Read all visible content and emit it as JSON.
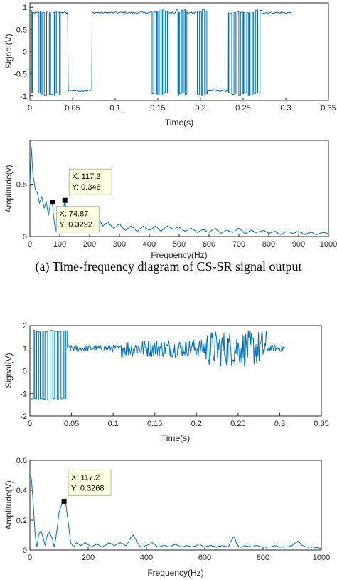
{
  "captions": {
    "a": "(a) Time-frequency diagram of CS-SR signal output"
  },
  "colors": {
    "line": "#0072BD",
    "axis": "#262626"
  },
  "chart_data": [
    {
      "id": "a_time",
      "type": "line",
      "xlabel": "Time(s)",
      "ylabel": "Signal(V)",
      "xlim": [
        0,
        0.35
      ],
      "ylim": [
        -1.1,
        1.1
      ],
      "xticks": [
        "0",
        "0.05",
        "0.1",
        "0.15",
        "0.2",
        "0.25",
        "0.3",
        "0.35"
      ],
      "yticks": [
        "-1",
        "-0.5",
        "0",
        "0.5",
        "1"
      ],
      "series": [
        {
          "segments": [
            {
              "from": 0.0,
              "to": 0.003,
              "pattern": "switch",
              "lo": -1.0,
              "hi": 0.95
            },
            {
              "from": 0.003,
              "to": 0.008,
              "pattern": "flat",
              "level": 0.88
            },
            {
              "from": 0.008,
              "to": 0.038,
              "pattern": "switch",
              "lo": -1.0,
              "hi": 0.95
            },
            {
              "from": 0.038,
              "to": 0.045,
              "pattern": "flat",
              "level": 0.88
            },
            {
              "from": 0.045,
              "to": 0.073,
              "pattern": "flat",
              "level": -0.88
            },
            {
              "from": 0.073,
              "to": 0.141,
              "pattern": "flat",
              "level": 0.88
            },
            {
              "from": 0.141,
              "to": 0.162,
              "pattern": "switch",
              "lo": -1.0,
              "hi": 0.95
            },
            {
              "from": 0.162,
              "to": 0.172,
              "pattern": "flat",
              "level": 0.88
            },
            {
              "from": 0.172,
              "to": 0.184,
              "pattern": "switch",
              "lo": -1.0,
              "hi": 0.95
            },
            {
              "from": 0.184,
              "to": 0.195,
              "pattern": "flat",
              "level": 0.88
            },
            {
              "from": 0.195,
              "to": 0.208,
              "pattern": "switch",
              "lo": -1.0,
              "hi": 0.95
            },
            {
              "from": 0.208,
              "to": 0.232,
              "pattern": "flat",
              "level": -0.88
            },
            {
              "from": 0.232,
              "to": 0.272,
              "pattern": "switch",
              "lo": -1.0,
              "hi": 0.95
            },
            {
              "from": 0.272,
              "to": 0.306,
              "pattern": "flat",
              "level": 0.88
            }
          ]
        }
      ]
    },
    {
      "id": "a_freq",
      "type": "line",
      "xlabel": "Frequency(Hz)",
      "ylabel": "Amplitude(v)",
      "xlim": [
        0,
        1000
      ],
      "ylim": [
        0,
        0.92
      ],
      "xticks": [
        "0",
        "100",
        "200",
        "300",
        "400",
        "500",
        "600",
        "700",
        "800",
        "900",
        "1000"
      ],
      "yticks": [
        "0",
        "0.5"
      ],
      "series": [
        {
          "points": [
            [
              0,
              0.5
            ],
            [
              5,
              0.85
            ],
            [
              10,
              0.6
            ],
            [
              18,
              0.45
            ],
            [
              25,
              0.42
            ],
            [
              32,
              0.32
            ],
            [
              40,
              0.38
            ],
            [
              48,
              0.27
            ],
            [
              55,
              0.33
            ],
            [
              62,
              0.2
            ],
            [
              68,
              0.31
            ],
            [
              74.87,
              0.3292
            ],
            [
              80,
              0.18
            ],
            [
              86,
              0.05
            ],
            [
              92,
              0.22
            ],
            [
              100,
              0.25
            ],
            [
              108,
              0.16
            ],
            [
              117.2,
              0.346
            ],
            [
              124,
              0.18
            ],
            [
              132,
              0.1
            ],
            [
              140,
              0.06
            ],
            [
              148,
              0.13
            ],
            [
              156,
              0.05
            ],
            [
              165,
              0.12
            ],
            [
              175,
              0.1
            ],
            [
              185,
              0.12
            ],
            [
              195,
              0.05
            ],
            [
              205,
              0.14
            ],
            [
              215,
              0.16
            ],
            [
              230,
              0.17
            ],
            [
              245,
              0.1
            ],
            [
              260,
              0.14
            ],
            [
              280,
              0.08
            ],
            [
              300,
              0.12
            ],
            [
              320,
              0.06
            ],
            [
              340,
              0.1
            ],
            [
              360,
              0.05
            ],
            [
              380,
              0.1
            ],
            [
              400,
              0.06
            ],
            [
              420,
              0.1
            ],
            [
              440,
              0.05
            ],
            [
              460,
              0.1
            ],
            [
              480,
              0.07
            ],
            [
              500,
              0.09
            ],
            [
              520,
              0.05
            ],
            [
              540,
              0.08
            ],
            [
              560,
              0.04
            ],
            [
              580,
              0.07
            ],
            [
              600,
              0.04
            ],
            [
              620,
              0.08
            ],
            [
              640,
              0.03
            ],
            [
              660,
              0.06
            ],
            [
              680,
              0.04
            ],
            [
              700,
              0.08
            ],
            [
              720,
              0.03
            ],
            [
              740,
              0.06
            ],
            [
              760,
              0.04
            ],
            [
              780,
              0.06
            ],
            [
              800,
              0.03
            ],
            [
              820,
              0.05
            ],
            [
              840,
              0.02
            ],
            [
              860,
              0.05
            ],
            [
              880,
              0.03
            ],
            [
              900,
              0.05
            ],
            [
              920,
              0.02
            ],
            [
              940,
              0.04
            ],
            [
              960,
              0.02
            ],
            [
              980,
              0.04
            ],
            [
              1000,
              0.03
            ]
          ]
        }
      ],
      "datatips": [
        {
          "x": 74.87,
          "y": 0.3292,
          "lines": [
            "X: 74.87",
            "Y: 0.3292"
          ]
        },
        {
          "x": 117.2,
          "y": 0.346,
          "lines": [
            "X: 117.2",
            "Y: 0.346"
          ]
        }
      ]
    },
    {
      "id": "b_time",
      "type": "line",
      "xlabel": "Time(s)",
      "ylabel": "Signal(V)",
      "xlim": [
        0,
        0.35
      ],
      "ylim": [
        -2,
        2
      ],
      "xticks": [
        "0",
        "0.05",
        "0.1",
        "0.15",
        "0.2",
        "0.25",
        "0.3",
        "0.35"
      ],
      "yticks": [
        "-2",
        "-1",
        "0",
        "1",
        "2"
      ],
      "series": [
        {
          "segments": [
            {
              "from": 0.0,
              "to": 0.045,
              "pattern": "switch",
              "lo": -1.3,
              "hi": 1.8
            },
            {
              "from": 0.045,
              "to": 0.11,
              "pattern": "noise",
              "level": 1.0,
              "amp": 0.15
            },
            {
              "from": 0.11,
              "to": 0.21,
              "pattern": "noise",
              "level": 1.0,
              "amp": 0.4
            },
            {
              "from": 0.21,
              "to": 0.285,
              "pattern": "noise",
              "level": 1.0,
              "amp": 0.8
            },
            {
              "from": 0.285,
              "to": 0.306,
              "pattern": "noise",
              "level": 1.0,
              "amp": 0.15
            }
          ]
        }
      ]
    },
    {
      "id": "b_freq",
      "type": "line",
      "xlabel": "Frequency(Hz)",
      "ylabel": "Amplitude(V)",
      "xlim": [
        0,
        1000
      ],
      "ylim": [
        0,
        0.6
      ],
      "xticks": [
        "0",
        "200",
        "400",
        "600",
        "800",
        "1000"
      ],
      "yticks": [
        "0",
        "0.2",
        "0.4",
        "0.6"
      ],
      "series": [
        {
          "points": [
            [
              0,
              0.5
            ],
            [
              5,
              0.48
            ],
            [
              12,
              0.3
            ],
            [
              18,
              0.1
            ],
            [
              24,
              0.02
            ],
            [
              30,
              0.1
            ],
            [
              38,
              0.13
            ],
            [
              46,
              0.08
            ],
            [
              52,
              0.03
            ],
            [
              60,
              0.1
            ],
            [
              68,
              0.12
            ],
            [
              76,
              0.08
            ],
            [
              84,
              0.02
            ],
            [
              92,
              0.12
            ],
            [
              100,
              0.25
            ],
            [
              110,
              0.31
            ],
            [
              117.2,
              0.3268
            ],
            [
              124,
              0.3
            ],
            [
              132,
              0.18
            ],
            [
              140,
              0.05
            ],
            [
              150,
              0.02
            ],
            [
              160,
              0.05
            ],
            [
              175,
              0.03
            ],
            [
              190,
              0.05
            ],
            [
              210,
              0.02
            ],
            [
              230,
              0.04
            ],
            [
              250,
              0.02
            ],
            [
              270,
              0.05
            ],
            [
              290,
              0.03
            ],
            [
              310,
              0.05
            ],
            [
              330,
              0.03
            ],
            [
              345,
              0.08
            ],
            [
              355,
              0.1
            ],
            [
              365,
              0.06
            ],
            [
              380,
              0.02
            ],
            [
              400,
              0.03
            ],
            [
              420,
              0.05
            ],
            [
              440,
              0.02
            ],
            [
              460,
              0.03
            ],
            [
              480,
              0.02
            ],
            [
              500,
              0.04
            ],
            [
              520,
              0.02
            ],
            [
              540,
              0.03
            ],
            [
              560,
              0.02
            ],
            [
              580,
              0.04
            ],
            [
              600,
              0.02
            ],
            [
              620,
              0.03
            ],
            [
              640,
              0.02
            ],
            [
              660,
              0.03
            ],
            [
              680,
              0.02
            ],
            [
              690,
              0.06
            ],
            [
              700,
              0.09
            ],
            [
              710,
              0.04
            ],
            [
              720,
              0.02
            ],
            [
              740,
              0.03
            ],
            [
              760,
              0.02
            ],
            [
              780,
              0.03
            ],
            [
              800,
              0.02
            ],
            [
              820,
              0.02
            ],
            [
              840,
              0.03
            ],
            [
              860,
              0.02
            ],
            [
              880,
              0.02
            ],
            [
              900,
              0.03
            ],
            [
              920,
              0.06
            ],
            [
              935,
              0.03
            ],
            [
              950,
              0.02
            ],
            [
              970,
              0.02
            ],
            [
              1000,
              0.01
            ]
          ]
        }
      ],
      "datatips": [
        {
          "x": 117.2,
          "y": 0.3268,
          "lines": [
            "X: 117.2",
            "Y: 0.3268"
          ]
        }
      ]
    }
  ]
}
